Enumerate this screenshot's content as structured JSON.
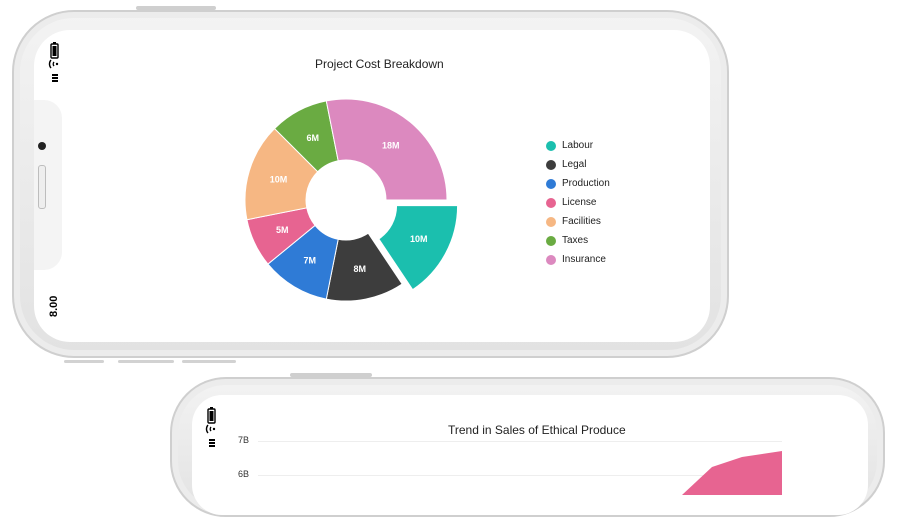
{
  "device_top": {
    "status_time": "8.00",
    "battery_icon": "battery-icon",
    "wifi_icon": "wifi-icon",
    "signal_icon": "signal-icon"
  },
  "colors": {
    "labour": "#1bbfae",
    "legal": "#3d3d3d",
    "production": "#2f7bd6",
    "license": "#e76491",
    "facilities": "#f6b783",
    "taxes": "#6aab42",
    "insurance": "#dc89bf"
  },
  "chart_data": [
    {
      "type": "pie",
      "title": "Project Cost Breakdown",
      "categories": [
        "Labour",
        "Legal",
        "Production",
        "License",
        "Facilities",
        "Taxes",
        "Insurance"
      ],
      "values": [
        10,
        8,
        7,
        5,
        10,
        6,
        18
      ],
      "labels": [
        "10M",
        "8M",
        "7M",
        "5M",
        "10M",
        "6M",
        "18M"
      ],
      "exploded": "Labour",
      "legend_position": "right"
    },
    {
      "type": "area",
      "title": "Trend in Sales of Ethical Produce",
      "y_ticks": [
        "7B",
        "6B"
      ]
    }
  ]
}
